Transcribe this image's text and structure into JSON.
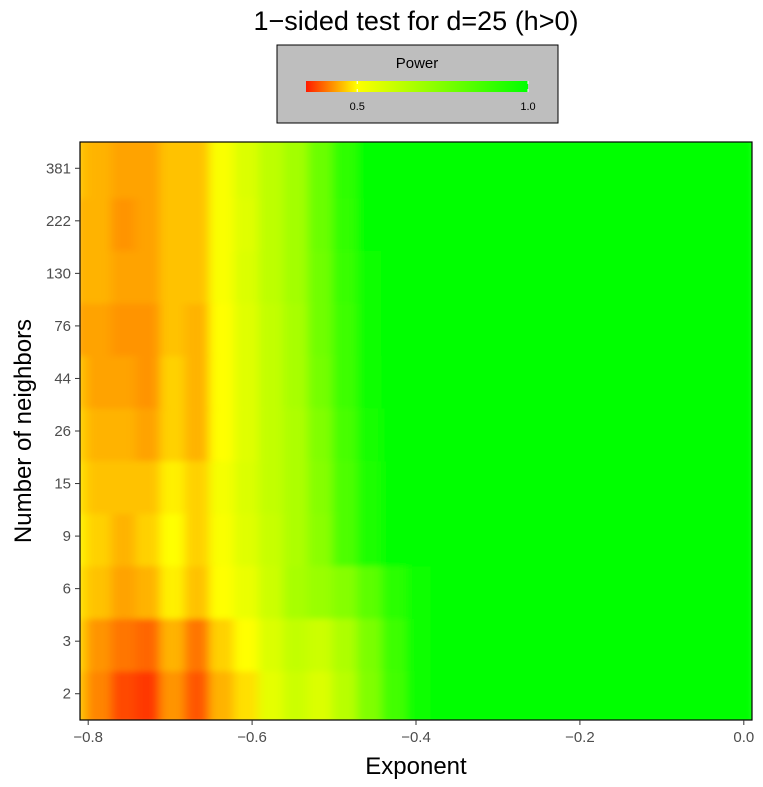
{
  "chart_data": {
    "type": "heatmap",
    "title": "1−sided test for d=25 (h>0)",
    "xlabel": "Exponent",
    "ylabel": "Number of neighbors",
    "x_ticks": [
      "−0.8",
      "−0.6",
      "−0.4",
      "−0.2",
      "0.0"
    ],
    "x_tick_values": [
      -0.8,
      -0.6,
      -0.4,
      -0.2,
      0.0
    ],
    "xlim": [
      -0.81,
      0.01
    ],
    "y_ticks": [
      "2",
      "3",
      "6",
      "9",
      "15",
      "26",
      "44",
      "76",
      "130",
      "222",
      "381"
    ],
    "legend": {
      "title": "Power",
      "tick_labels": [
        "0.5",
        "1.0"
      ],
      "tick_values": [
        0.5,
        1.0
      ],
      "range": [
        0.35,
        1.0
      ],
      "colors": [
        "#ff1a00",
        "#ffff00",
        "#00ff00"
      ],
      "placement": "top-center"
    },
    "grid": false,
    "rows": [
      {
        "neighbors": "2",
        "x": [
          -0.81,
          -0.78,
          -0.75,
          -0.72,
          -0.69,
          -0.66,
          -0.63,
          -0.6,
          -0.57,
          -0.54,
          -0.51,
          -0.48,
          -0.45,
          -0.42,
          -0.39,
          -0.36,
          -0.33,
          0.01
        ],
        "power": [
          0.46,
          0.42,
          0.38,
          0.37,
          0.43,
          0.39,
          0.45,
          0.48,
          0.55,
          0.6,
          0.57,
          0.64,
          0.75,
          0.87,
          0.97,
          1.0,
          1.0,
          1.0
        ]
      },
      {
        "neighbors": "3",
        "x": [
          -0.81,
          -0.78,
          -0.75,
          -0.72,
          -0.69,
          -0.66,
          -0.63,
          -0.6,
          -0.57,
          -0.54,
          -0.51,
          -0.48,
          -0.45,
          -0.42,
          -0.39,
          -0.36,
          -0.33,
          0.01
        ],
        "power": [
          0.47,
          0.43,
          0.41,
          0.4,
          0.45,
          0.41,
          0.47,
          0.5,
          0.57,
          0.62,
          0.6,
          0.66,
          0.76,
          0.88,
          0.97,
          1.0,
          1.0,
          1.0
        ]
      },
      {
        "neighbors": "6",
        "x": [
          -0.81,
          -0.78,
          -0.75,
          -0.72,
          -0.69,
          -0.66,
          -0.63,
          -0.6,
          -0.57,
          -0.54,
          -0.51,
          -0.48,
          -0.45,
          -0.42,
          -0.39,
          -0.36,
          -0.33,
          0.01
        ],
        "power": [
          0.48,
          0.46,
          0.44,
          0.45,
          0.49,
          0.46,
          0.5,
          0.54,
          0.6,
          0.67,
          0.7,
          0.74,
          0.82,
          0.92,
          0.98,
          1.0,
          1.0,
          1.0
        ]
      },
      {
        "neighbors": "9",
        "x": [
          -0.81,
          -0.78,
          -0.75,
          -0.72,
          -0.69,
          -0.66,
          -0.63,
          -0.6,
          -0.57,
          -0.54,
          -0.51,
          -0.48,
          -0.45,
          -0.42,
          -0.39,
          -0.36,
          -0.33,
          0.01
        ],
        "power": [
          0.49,
          0.47,
          0.45,
          0.47,
          0.5,
          0.47,
          0.51,
          0.56,
          0.61,
          0.66,
          0.73,
          0.85,
          0.95,
          1.0,
          1.0,
          1.0,
          1.0,
          1.0
        ]
      },
      {
        "neighbors": "15",
        "x": [
          -0.81,
          -0.78,
          -0.75,
          -0.72,
          -0.69,
          -0.66,
          -0.63,
          -0.6,
          -0.57,
          -0.54,
          -0.51,
          -0.48,
          -0.45,
          -0.42,
          -0.39,
          -0.36,
          -0.33,
          0.01
        ],
        "power": [
          0.48,
          0.46,
          0.46,
          0.46,
          0.49,
          0.47,
          0.52,
          0.57,
          0.62,
          0.66,
          0.74,
          0.85,
          0.95,
          1.0,
          1.0,
          1.0,
          1.0,
          1.0
        ]
      },
      {
        "neighbors": "26",
        "x": [
          -0.81,
          -0.78,
          -0.75,
          -0.72,
          -0.69,
          -0.66,
          -0.63,
          -0.6,
          -0.57,
          -0.54,
          -0.51,
          -0.48,
          -0.45,
          -0.42,
          -0.39,
          -0.36,
          -0.33,
          0.01
        ],
        "power": [
          0.47,
          0.45,
          0.45,
          0.44,
          0.47,
          0.45,
          0.5,
          0.56,
          0.62,
          0.66,
          0.75,
          0.86,
          0.96,
          1.0,
          1.0,
          1.0,
          1.0,
          1.0
        ]
      },
      {
        "neighbors": "44",
        "x": [
          -0.81,
          -0.78,
          -0.75,
          -0.72,
          -0.69,
          -0.66,
          -0.63,
          -0.6,
          -0.57,
          -0.54,
          -0.51,
          -0.48,
          -0.45,
          -0.42,
          -0.39,
          -0.36,
          -0.33,
          0.01
        ],
        "power": [
          0.46,
          0.44,
          0.44,
          0.43,
          0.47,
          0.45,
          0.5,
          0.56,
          0.62,
          0.67,
          0.77,
          0.88,
          0.97,
          1.0,
          1.0,
          1.0,
          1.0,
          1.0
        ]
      },
      {
        "neighbors": "76",
        "x": [
          -0.81,
          -0.78,
          -0.75,
          -0.72,
          -0.69,
          -0.66,
          -0.63,
          -0.6,
          -0.57,
          -0.54,
          -0.51,
          -0.48,
          -0.45,
          -0.42,
          -0.39,
          -0.36,
          -0.33,
          0.01
        ],
        "power": [
          0.44,
          0.44,
          0.43,
          0.43,
          0.46,
          0.45,
          0.5,
          0.56,
          0.62,
          0.67,
          0.78,
          0.88,
          0.98,
          1.0,
          1.0,
          1.0,
          1.0,
          1.0
        ]
      },
      {
        "neighbors": "130",
        "x": [
          -0.81,
          -0.78,
          -0.75,
          -0.72,
          -0.69,
          -0.66,
          -0.63,
          -0.6,
          -0.57,
          -0.54,
          -0.51,
          -0.48,
          -0.45,
          -0.42,
          -0.39,
          -0.36,
          -0.33,
          0.01
        ],
        "power": [
          0.45,
          0.45,
          0.44,
          0.44,
          0.46,
          0.46,
          0.51,
          0.57,
          0.63,
          0.68,
          0.78,
          0.89,
          0.98,
          1.0,
          1.0,
          1.0,
          1.0,
          1.0
        ]
      },
      {
        "neighbors": "222",
        "x": [
          -0.81,
          -0.78,
          -0.75,
          -0.72,
          -0.69,
          -0.66,
          -0.63,
          -0.6,
          -0.57,
          -0.54,
          -0.51,
          -0.48,
          -0.45,
          -0.42,
          -0.39,
          -0.36,
          -0.33,
          0.01
        ],
        "power": [
          0.45,
          0.45,
          0.43,
          0.44,
          0.46,
          0.46,
          0.51,
          0.56,
          0.63,
          0.68,
          0.79,
          0.9,
          0.99,
          1.0,
          1.0,
          1.0,
          1.0,
          1.0
        ]
      },
      {
        "neighbors": "381",
        "x": [
          -0.81,
          -0.78,
          -0.75,
          -0.72,
          -0.69,
          -0.66,
          -0.63,
          -0.6,
          -0.57,
          -0.54,
          -0.51,
          -0.48,
          -0.45,
          -0.42,
          -0.39,
          -0.36,
          -0.33,
          0.01
        ],
        "power": [
          0.46,
          0.45,
          0.44,
          0.44,
          0.46,
          0.46,
          0.51,
          0.57,
          0.63,
          0.68,
          0.79,
          0.91,
          0.99,
          1.0,
          1.0,
          1.0,
          1.0,
          1.0
        ]
      }
    ]
  }
}
